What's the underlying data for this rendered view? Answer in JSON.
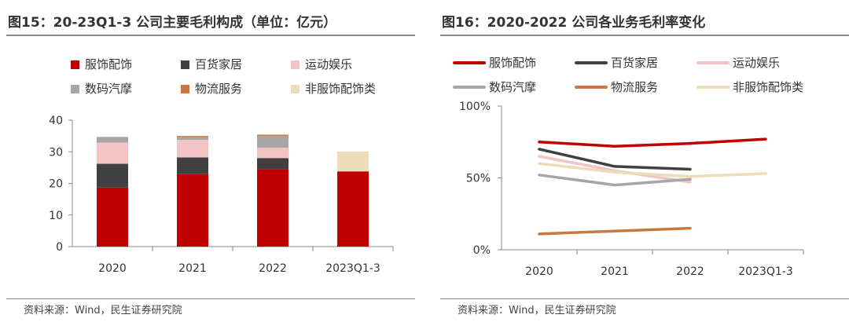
{
  "left_panel": {
    "title": "图15：20-23Q1-3 公司主要毛利构成（单位：亿元）",
    "source": "资料来源：Wind，民生证券研究院"
  },
  "right_panel": {
    "title": "图16：2020-2022 公司各业务毛利率变化",
    "source": "资料来源：Wind，民生证券研究院"
  },
  "chart_data": [
    {
      "type": "bar",
      "stacked": true,
      "title": "图15：20-23Q1-3 公司主要毛利构成（单位：亿元）",
      "categories": [
        "2020",
        "2021",
        "2022",
        "2023Q1-3"
      ],
      "series": [
        {
          "name": "服饰配饰",
          "color": "#c00000",
          "values": [
            18.7,
            22.9,
            24.5,
            23.8
          ]
        },
        {
          "name": "百货家居",
          "color": "#404040",
          "values": [
            7.5,
            5.3,
            3.5,
            0
          ]
        },
        {
          "name": "运动娱乐",
          "color": "#f2c4c4",
          "values": [
            6.7,
            5.6,
            3.3,
            0
          ]
        },
        {
          "name": "数码汽摩",
          "color": "#a6a6a6",
          "values": [
            1.8,
            0.8,
            3.7,
            0
          ]
        },
        {
          "name": "物流服务",
          "color": "#c87941",
          "values": [
            0,
            0.4,
            0.4,
            0
          ]
        },
        {
          "name": "非服饰配饰类",
          "color": "#eddcb8",
          "values": [
            0,
            0,
            0,
            6.3
          ]
        }
      ],
      "yticks": [
        "0",
        "10",
        "20",
        "30",
        "40"
      ],
      "ylim": [
        0,
        40
      ],
      "xlabel": "",
      "ylabel": "",
      "legend": "top",
      "grid": false
    },
    {
      "type": "line",
      "title": "图16：2020-2022 公司各业务毛利率变化",
      "categories": [
        "2020",
        "2021",
        "2022",
        "2023Q1-3"
      ],
      "series": [
        {
          "name": "服饰配饰",
          "color": "#c00000",
          "values": [
            75,
            72,
            74,
            77
          ]
        },
        {
          "name": "百货家居",
          "color": "#404040",
          "values": [
            70,
            58,
            56,
            null
          ]
        },
        {
          "name": "运动娱乐",
          "color": "#f2c4c4",
          "values": [
            65,
            55,
            47,
            null
          ]
        },
        {
          "name": "数码汽摩",
          "color": "#a6a6a6",
          "values": [
            52,
            45,
            49,
            null
          ]
        },
        {
          "name": "物流服务",
          "color": "#c87941",
          "values": [
            11,
            13,
            15,
            null
          ]
        },
        {
          "name": "非服饰配饰类",
          "color": "#eddcb8",
          "values": [
            60,
            54,
            51,
            53
          ]
        }
      ],
      "yticks": [
        "0%",
        "50%",
        "100%"
      ],
      "ylim": [
        0,
        100
      ],
      "xlabel": "",
      "ylabel": "",
      "legend": "top",
      "grid": false
    }
  ]
}
